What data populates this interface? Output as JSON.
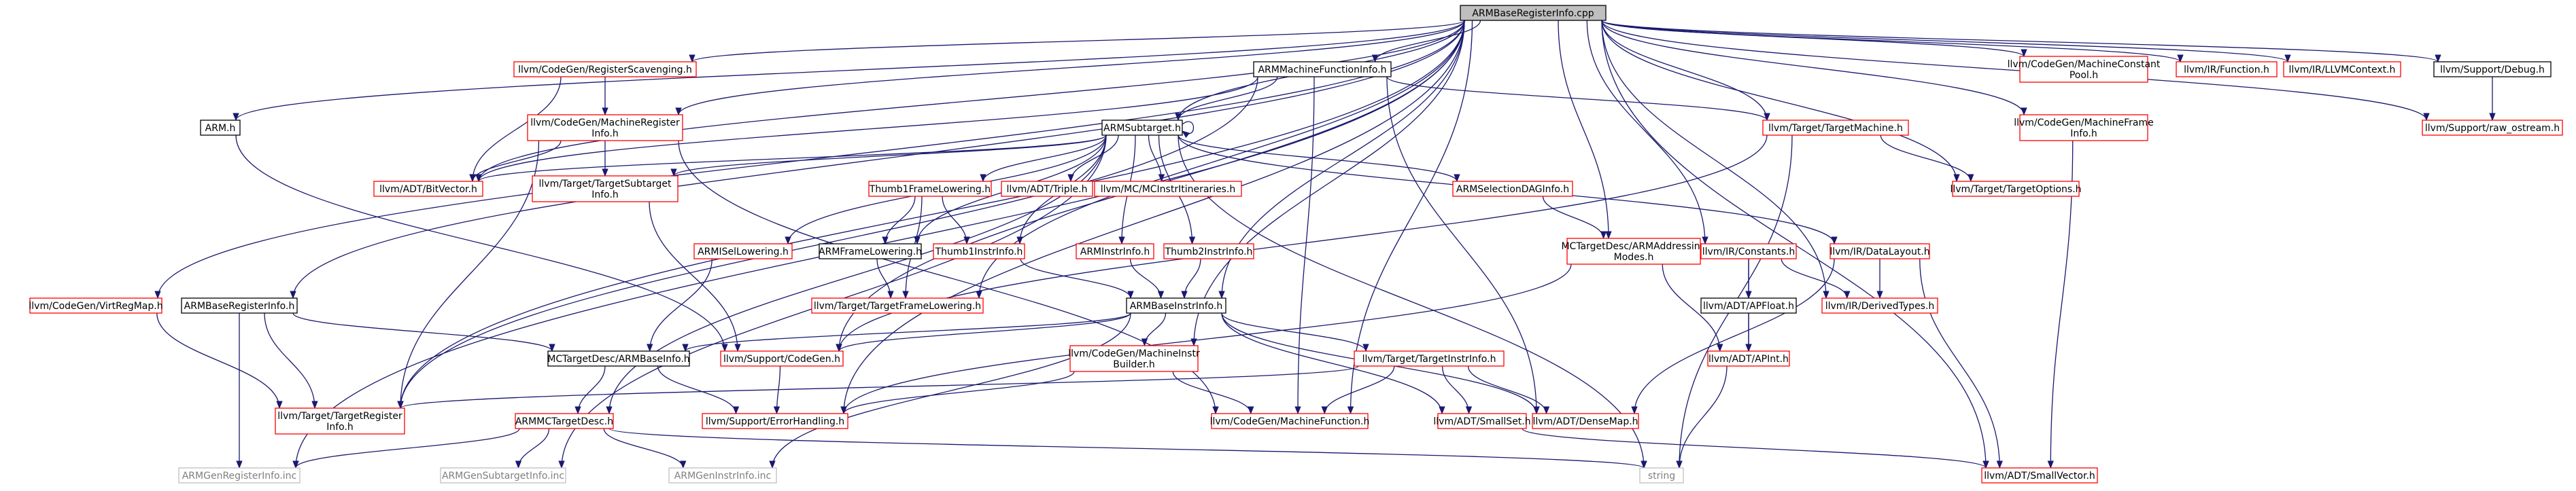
{
  "graph": {
    "colors": {
      "root_fill": "#bfbfbf",
      "root_stroke": "#000000",
      "link_fill": "#ffffff",
      "link_stroke": "#000000",
      "missing_stroke": "#ff0000",
      "external_stroke": "#bfbfbf",
      "external_text": "#7f7f7f",
      "edge": "#191970",
      "text": "#000000"
    },
    "nodes": [
      {
        "id": "root",
        "label": [
          "ARMBaseRegisterInfo.cpp"
        ],
        "kind": "root"
      },
      {
        "id": "regscav",
        "label": [
          "llvm/CodeGen/RegisterScavenging.h"
        ],
        "kind": "missing"
      },
      {
        "id": "armmfi",
        "label": [
          "ARMMachineFunctionInfo.h"
        ],
        "kind": "link"
      },
      {
        "id": "mcp",
        "label": [
          "llvm/CodeGen/MachineConstant",
          "Pool.h"
        ],
        "kind": "missing"
      },
      {
        "id": "irfunc",
        "label": [
          "llvm/IR/Function.h"
        ],
        "kind": "missing"
      },
      {
        "id": "llvmctx",
        "label": [
          "llvm/IR/LLVMContext.h"
        ],
        "kind": "missing"
      },
      {
        "id": "debug",
        "label": [
          "llvm/Support/Debug.h"
        ],
        "kind": "link"
      },
      {
        "id": "armh",
        "label": [
          "ARM.h"
        ],
        "kind": "link"
      },
      {
        "id": "mri",
        "label": [
          "llvm/CodeGen/MachineRegister",
          "Info.h"
        ],
        "kind": "missing"
      },
      {
        "id": "tm",
        "label": [
          "llvm/Target/TargetMachine.h"
        ],
        "kind": "missing"
      },
      {
        "id": "mfi",
        "label": [
          "llvm/CodeGen/MachineFrame",
          "Info.h"
        ],
        "kind": "missing"
      },
      {
        "id": "rawos",
        "label": [
          "llvm/Support/raw_ostream.h"
        ],
        "kind": "missing"
      },
      {
        "id": "armst",
        "label": [
          "ARMSubtarget.h"
        ],
        "kind": "link"
      },
      {
        "id": "bitvec",
        "label": [
          "llvm/ADT/BitVector.h"
        ],
        "kind": "missing"
      },
      {
        "id": "tsi",
        "label": [
          "llvm/Target/TargetSubtarget",
          "Info.h"
        ],
        "kind": "missing"
      },
      {
        "id": "t1fl",
        "label": [
          "Thumb1FrameLowering.h"
        ],
        "kind": "missing"
      },
      {
        "id": "triple",
        "label": [
          "llvm/ADT/Triple.h"
        ],
        "kind": "missing"
      },
      {
        "id": "mcinst",
        "label": [
          "llvm/MC/MCInstrItineraries.h"
        ],
        "kind": "missing"
      },
      {
        "id": "armsdag",
        "label": [
          "ARMSelectionDAGInfo.h"
        ],
        "kind": "missing"
      },
      {
        "id": "to",
        "label": [
          "llvm/Target/TargetOptions.h"
        ],
        "kind": "missing"
      },
      {
        "id": "isel",
        "label": [
          "ARMISelLowering.h"
        ],
        "kind": "missing"
      },
      {
        "id": "armfl",
        "label": [
          "ARMFrameLowering.h"
        ],
        "kind": "link"
      },
      {
        "id": "t1ii",
        "label": [
          "Thumb1InstrInfo.h"
        ],
        "kind": "missing"
      },
      {
        "id": "armii",
        "label": [
          "ARMInstrInfo.h"
        ],
        "kind": "missing"
      },
      {
        "id": "t2ii",
        "label": [
          "Thumb2InstrInfo.h"
        ],
        "kind": "missing"
      },
      {
        "id": "addrmodes",
        "label": [
          "MCTargetDesc/ARMAddressing",
          "Modes.h"
        ],
        "kind": "missing"
      },
      {
        "id": "constants",
        "label": [
          "llvm/IR/Constants.h"
        ],
        "kind": "missing"
      },
      {
        "id": "datalayout",
        "label": [
          "llvm/IR/DataLayout.h"
        ],
        "kind": "missing"
      },
      {
        "id": "virtreg",
        "label": [
          "llvm/CodeGen/VirtRegMap.h"
        ],
        "kind": "missing"
      },
      {
        "id": "armbri",
        "label": [
          "ARMBaseRegisterInfo.h"
        ],
        "kind": "link"
      },
      {
        "id": "tfl",
        "label": [
          "llvm/Target/TargetFrameLowering.h"
        ],
        "kind": "missing"
      },
      {
        "id": "armbii",
        "label": [
          "ARMBaseInstrInfo.h"
        ],
        "kind": "link"
      },
      {
        "id": "apfloat",
        "label": [
          "llvm/ADT/APFloat.h"
        ],
        "kind": "link"
      },
      {
        "id": "derived",
        "label": [
          "llvm/IR/DerivedTypes.h"
        ],
        "kind": "missing"
      },
      {
        "id": "mctdbase",
        "label": [
          "MCTargetDesc/ARMBaseInfo.h"
        ],
        "kind": "link"
      },
      {
        "id": "codegen",
        "label": [
          "llvm/Support/CodeGen.h"
        ],
        "kind": "missing"
      },
      {
        "id": "mib",
        "label": [
          "llvm/CodeGen/MachineInstr",
          "Builder.h"
        ],
        "kind": "missing"
      },
      {
        "id": "tii",
        "label": [
          "llvm/Target/TargetInstrInfo.h"
        ],
        "kind": "missing"
      },
      {
        "id": "apint",
        "label": [
          "llvm/ADT/APInt.h"
        ],
        "kind": "missing"
      },
      {
        "id": "tri",
        "label": [
          "llvm/Target/TargetRegister",
          "Info.h"
        ],
        "kind": "missing"
      },
      {
        "id": "armmctd",
        "label": [
          "ARMMCTargetDesc.h"
        ],
        "kind": "missing"
      },
      {
        "id": "errh",
        "label": [
          "llvm/Support/ErrorHandling.h"
        ],
        "kind": "missing"
      },
      {
        "id": "mf",
        "label": [
          "llvm/CodeGen/MachineFunction.h"
        ],
        "kind": "missing"
      },
      {
        "id": "smallset",
        "label": [
          "llvm/ADT/SmallSet.h"
        ],
        "kind": "missing"
      },
      {
        "id": "densemap",
        "label": [
          "llvm/ADT/DenseMap.h"
        ],
        "kind": "missing"
      },
      {
        "id": "genreg",
        "label": [
          "ARMGenRegisterInfo.inc"
        ],
        "kind": "external"
      },
      {
        "id": "gensub",
        "label": [
          "ARMGenSubtargetInfo.inc"
        ],
        "kind": "external"
      },
      {
        "id": "geninstr",
        "label": [
          "ARMGenInstrInfo.inc"
        ],
        "kind": "external"
      },
      {
        "id": "string",
        "label": [
          "string"
        ],
        "kind": "external"
      },
      {
        "id": "smallvec",
        "label": [
          "llvm/ADT/SmallVector.h"
        ],
        "kind": "missing"
      }
    ],
    "edges": [
      [
        "root",
        "armbri"
      ],
      [
        "root",
        "regscav"
      ],
      [
        "root",
        "armmfi"
      ],
      [
        "root",
        "armst"
      ],
      [
        "root",
        "mcp"
      ],
      [
        "root",
        "irfunc"
      ],
      [
        "root",
        "llvmctx"
      ],
      [
        "root",
        "debug"
      ],
      [
        "root",
        "armh"
      ],
      [
        "root",
        "mri"
      ],
      [
        "root",
        "tm"
      ],
      [
        "root",
        "mfi"
      ],
      [
        "root",
        "rawos"
      ],
      [
        "root",
        "bitvec"
      ],
      [
        "root",
        "virtreg"
      ],
      [
        "root",
        "armbii"
      ],
      [
        "root",
        "addrmodes"
      ],
      [
        "root",
        "constants"
      ],
      [
        "root",
        "derived"
      ],
      [
        "root",
        "mib"
      ],
      [
        "root",
        "mf"
      ],
      [
        "root",
        "tfl"
      ],
      [
        "root",
        "tri"
      ],
      [
        "root",
        "to"
      ],
      [
        "root",
        "errh"
      ],
      [
        "root",
        "genreg"
      ],
      [
        "root",
        "smallvec"
      ],
      [
        "root",
        "codegen"
      ],
      [
        "regscav",
        "mri"
      ],
      [
        "regscav",
        "bitvec"
      ],
      [
        "armmfi",
        "armst"
      ],
      [
        "armmfi",
        "mf"
      ],
      [
        "armmfi",
        "tm"
      ],
      [
        "armmfi",
        "densemap"
      ],
      [
        "armmfi",
        "tri"
      ],
      [
        "armmfi",
        "bitvec"
      ],
      [
        "debug",
        "rawos"
      ],
      [
        "armh",
        "codegen"
      ],
      [
        "mri",
        "bitvec"
      ],
      [
        "mri",
        "tsi"
      ],
      [
        "mri",
        "mf"
      ],
      [
        "mri",
        "tri"
      ],
      [
        "tm",
        "to"
      ],
      [
        "tm",
        "string"
      ],
      [
        "tm",
        "codegen"
      ],
      [
        "mfi",
        "smallvec"
      ],
      [
        "armst",
        "bitvec"
      ],
      [
        "armst",
        "tsi"
      ],
      [
        "armst",
        "t1fl"
      ],
      [
        "armst",
        "triple"
      ],
      [
        "armst",
        "mcinst"
      ],
      [
        "armst",
        "armsdag"
      ],
      [
        "armst",
        "datalayout"
      ],
      [
        "armst",
        "isel"
      ],
      [
        "armst",
        "armfl"
      ],
      [
        "armst",
        "t1ii"
      ],
      [
        "armst",
        "armii"
      ],
      [
        "armst",
        "t2ii"
      ],
      [
        "armst",
        "armmctd"
      ],
      [
        "armst",
        "gensub"
      ],
      [
        "armst",
        "string"
      ],
      [
        "armst",
        "armst"
      ],
      [
        "tsi",
        "codegen"
      ],
      [
        "t1fl",
        "armfl"
      ],
      [
        "t1fl",
        "t1ii"
      ],
      [
        "t1fl",
        "tfl"
      ],
      [
        "armsdag",
        "addrmodes"
      ],
      [
        "isel",
        "mctdbase"
      ],
      [
        "armfl",
        "tfl"
      ],
      [
        "t1ii",
        "armbii"
      ],
      [
        "armii",
        "armbii"
      ],
      [
        "t2ii",
        "armbii"
      ],
      [
        "addrmodes",
        "apint"
      ],
      [
        "addrmodes",
        "errh"
      ],
      [
        "constants",
        "apfloat"
      ],
      [
        "constants",
        "apint"
      ],
      [
        "constants",
        "derived"
      ],
      [
        "datalayout",
        "derived"
      ],
      [
        "datalayout",
        "densemap"
      ],
      [
        "datalayout",
        "smallvec"
      ],
      [
        "virtreg",
        "tri"
      ],
      [
        "armbri",
        "mctdbase"
      ],
      [
        "armbri",
        "tri"
      ],
      [
        "armbri",
        "genreg"
      ],
      [
        "armbii",
        "mctdbase"
      ],
      [
        "armbii",
        "codegen"
      ],
      [
        "armbii",
        "mib"
      ],
      [
        "armbii",
        "tii"
      ],
      [
        "armbii",
        "densemap"
      ],
      [
        "armbii",
        "smallset"
      ],
      [
        "armbii",
        "geninstr"
      ],
      [
        "apfloat",
        "apint"
      ],
      [
        "mctdbase",
        "armmctd"
      ],
      [
        "mctdbase",
        "errh"
      ],
      [
        "codegen",
        "errh"
      ],
      [
        "mib",
        "mf"
      ],
      [
        "mib",
        "errh"
      ],
      [
        "tii",
        "smallset"
      ],
      [
        "tii",
        "densemap"
      ],
      [
        "tii",
        "mf"
      ],
      [
        "tii",
        "tri"
      ],
      [
        "apint",
        "string"
      ],
      [
        "armmctd",
        "genreg"
      ],
      [
        "armmctd",
        "gensub"
      ],
      [
        "armmctd",
        "geninstr"
      ],
      [
        "armmctd",
        "string"
      ],
      [
        "smallset",
        "smallvec"
      ]
    ]
  }
}
